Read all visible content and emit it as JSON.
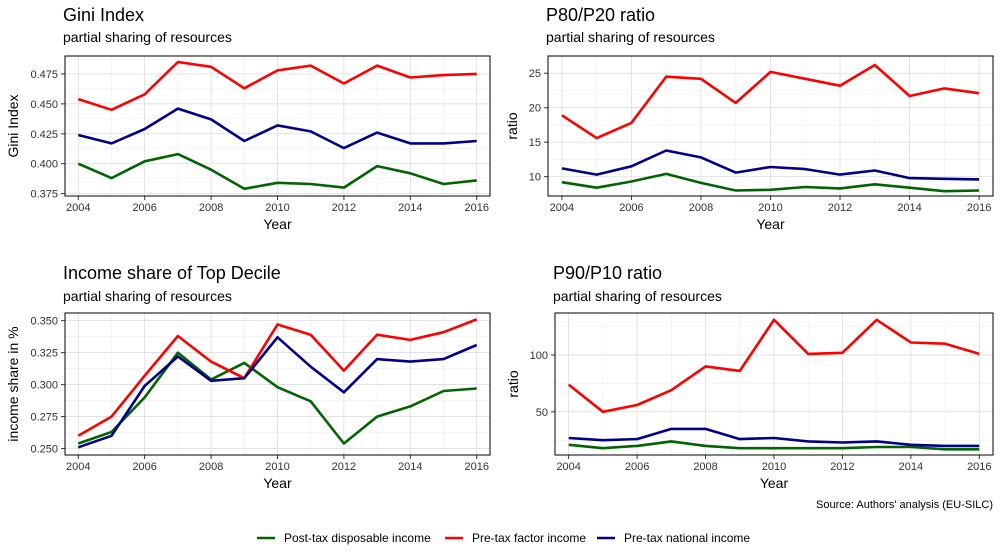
{
  "series_colors": {
    "Post-tax disposable income": "#006400",
    "Pre-tax factor income": "#ff0000",
    "Pre-tax national income": "#00008b"
  },
  "chart_data": [
    {
      "type": "line",
      "title": "Gini Index",
      "subtitle": "partial sharing of resources",
      "xlabel": "Year",
      "ylabel": "Gini Index",
      "x": [
        2004,
        2005,
        2006,
        2007,
        2008,
        2009,
        2010,
        2011,
        2012,
        2013,
        2014,
        2015,
        2016
      ],
      "xticks": [
        "2004",
        "2006",
        "2008",
        "2010",
        "2012",
        "2014",
        "2016"
      ],
      "yticks": [
        "0.375",
        "0.400",
        "0.425",
        "0.450",
        "0.475"
      ],
      "ylim": [
        0.373,
        0.49
      ],
      "grid": true,
      "series": [
        {
          "name": "Post-tax disposable income",
          "values": [
            0.4,
            0.388,
            0.402,
            0.408,
            0.395,
            0.379,
            0.384,
            0.383,
            0.38,
            0.398,
            0.392,
            0.383,
            0.386
          ]
        },
        {
          "name": "Pre-tax factor income",
          "values": [
            0.454,
            0.445,
            0.458,
            0.485,
            0.481,
            0.463,
            0.478,
            0.482,
            0.467,
            0.482,
            0.472,
            0.474,
            0.475
          ]
        },
        {
          "name": "Pre-tax national income",
          "values": [
            0.424,
            0.417,
            0.429,
            0.446,
            0.437,
            0.419,
            0.432,
            0.427,
            0.413,
            0.426,
            0.417,
            0.417,
            0.419
          ]
        }
      ]
    },
    {
      "type": "line",
      "title": "P80/P20 ratio",
      "subtitle": "partial sharing of resources",
      "xlabel": "Year",
      "ylabel": "ratio",
      "x": [
        2004,
        2005,
        2006,
        2007,
        2008,
        2009,
        2010,
        2011,
        2012,
        2013,
        2014,
        2015,
        2016
      ],
      "xticks": [
        "2004",
        "2006",
        "2008",
        "2010",
        "2012",
        "2014",
        "2016"
      ],
      "yticks": [
        "10",
        "15",
        "20",
        "25"
      ],
      "ylim": [
        7.2,
        27.5
      ],
      "grid": true,
      "series": [
        {
          "name": "Post-tax disposable income",
          "values": [
            9.2,
            8.4,
            9.3,
            10.4,
            9.1,
            8.0,
            8.1,
            8.5,
            8.3,
            8.9,
            8.4,
            7.9,
            8.0
          ]
        },
        {
          "name": "Pre-tax factor income",
          "values": [
            18.9,
            15.6,
            17.8,
            24.5,
            24.2,
            20.7,
            25.2,
            24.2,
            23.2,
            26.2,
            21.7,
            22.8,
            22.1
          ]
        },
        {
          "name": "Pre-tax national income",
          "values": [
            11.2,
            10.3,
            11.5,
            13.8,
            12.8,
            10.6,
            11.4,
            11.1,
            10.3,
            10.9,
            9.8,
            9.7,
            9.6
          ]
        }
      ]
    },
    {
      "type": "line",
      "title": "Income share of Top Decile",
      "subtitle": "partial sharing of resources",
      "xlabel": "Year",
      "ylabel": "income share in %",
      "x": [
        2004,
        2005,
        2006,
        2007,
        2008,
        2009,
        2010,
        2011,
        2012,
        2013,
        2014,
        2015,
        2016
      ],
      "xticks": [
        "2004",
        "2006",
        "2008",
        "2010",
        "2012",
        "2014",
        "2016"
      ],
      "yticks": [
        "0.250",
        "0.275",
        "0.300",
        "0.325",
        "0.350"
      ],
      "ylim": [
        0.245,
        0.356
      ],
      "grid": true,
      "series": [
        {
          "name": "Post-tax disposable income",
          "values": [
            0.254,
            0.263,
            0.29,
            0.325,
            0.304,
            0.317,
            0.298,
            0.287,
            0.254,
            0.275,
            0.283,
            0.295,
            0.297
          ]
        },
        {
          "name": "Pre-tax factor income",
          "values": [
            0.26,
            0.275,
            0.307,
            0.338,
            0.318,
            0.305,
            0.347,
            0.339,
            0.311,
            0.339,
            0.335,
            0.341,
            0.351
          ]
        },
        {
          "name": "Pre-tax national income",
          "values": [
            0.251,
            0.26,
            0.299,
            0.322,
            0.303,
            0.305,
            0.337,
            0.314,
            0.294,
            0.32,
            0.318,
            0.32,
            0.331
          ]
        }
      ]
    },
    {
      "type": "line",
      "title": "P90/P10 ratio",
      "subtitle": "partial sharing of resources",
      "xlabel": "Year",
      "ylabel": "ratio",
      "x": [
        2004,
        2005,
        2006,
        2007,
        2008,
        2009,
        2010,
        2011,
        2012,
        2013,
        2014,
        2015,
        2016
      ],
      "xticks": [
        "2004",
        "2006",
        "2008",
        "2010",
        "2012",
        "2014",
        "2016"
      ],
      "yticks": [
        "50",
        "100"
      ],
      "ylim": [
        12,
        137
      ],
      "grid": true,
      "series": [
        {
          "name": "Post-tax disposable income",
          "values": [
            21,
            18,
            20,
            24,
            20,
            18,
            18,
            18,
            18,
            19,
            19,
            17,
            17
          ]
        },
        {
          "name": "Pre-tax factor income",
          "values": [
            74,
            50,
            56,
            69,
            90,
            86,
            131,
            101,
            102,
            131,
            111,
            110,
            101
          ]
        },
        {
          "name": "Pre-tax national income",
          "values": [
            27,
            25,
            26,
            35,
            35,
            26,
            27,
            24,
            23,
            24,
            21,
            20,
            20
          ]
        }
      ]
    }
  ],
  "legend": {
    "position": "bottom",
    "items": [
      "Post-tax disposable income",
      "Pre-tax factor income",
      "Pre-tax national income"
    ]
  },
  "source_note": "Source: Authors' analysis (EU-SILC)"
}
